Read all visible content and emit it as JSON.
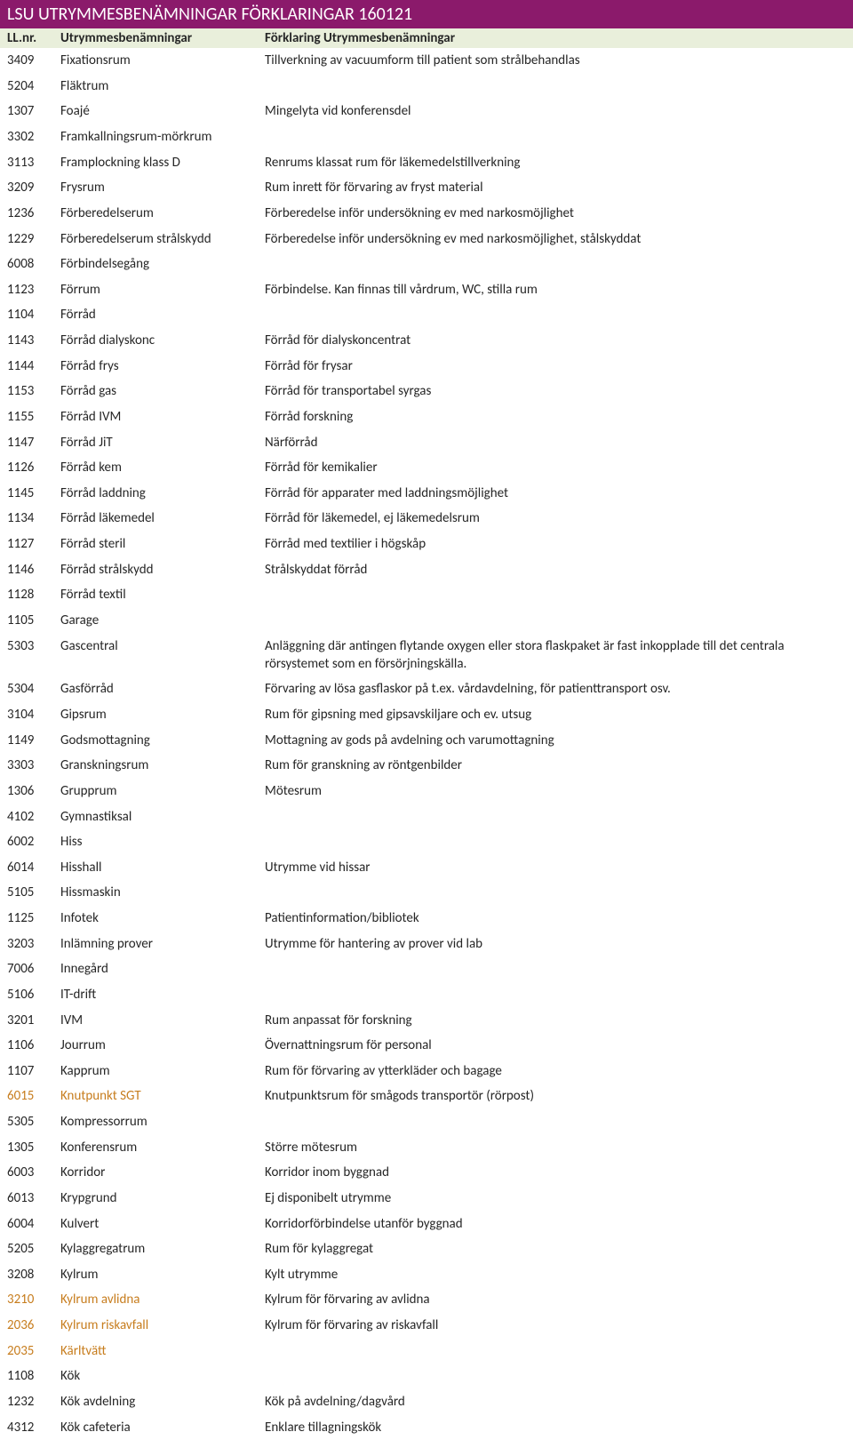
{
  "title": "LSU UTRYMMESBENÄMNINGAR FÖRKLARINGAR 160121",
  "header": {
    "nr": "LL.nr.",
    "name": "Utrymmesbenämningar",
    "desc": "Förklaring Utrymmesbenämningar"
  },
  "colors": {
    "titleBg": "#8b1a6b",
    "titleFg": "#ffffff",
    "headerBg": "#e9efdb",
    "text": "#262626",
    "highlight": "#c77d1e"
  },
  "rows": [
    {
      "nr": "3409",
      "name": "Fixationsrum",
      "desc": "Tillverkning av vacuumform till patient som strålbehandlas"
    },
    {
      "nr": "5204",
      "name": "Fläktrum",
      "desc": ""
    },
    {
      "nr": "1307",
      "name": "Foajé",
      "desc": "Mingelyta vid konferensdel"
    },
    {
      "nr": "3302",
      "name": "Framkallningsrum-mörkrum",
      "desc": ""
    },
    {
      "nr": "3113",
      "name": "Framplockning klass D",
      "desc": "Renrums klassat rum för läkemedelstillverkning"
    },
    {
      "nr": "3209",
      "name": "Frysrum",
      "desc": "Rum inrett för förvaring av fryst material"
    },
    {
      "nr": "1236",
      "name": "Förberedelserum",
      "desc": "Förberedelse inför undersökning ev med narkosmöjlighet"
    },
    {
      "nr": "1229",
      "name": "Förberedelserum strålskydd",
      "desc": "Förberedelse inför undersökning ev med narkosmöjlighet, stålskyddat"
    },
    {
      "nr": "6008",
      "name": "Förbindelsegång",
      "desc": ""
    },
    {
      "nr": "1123",
      "name": "Förrum",
      "desc": "Förbindelse. Kan finnas till vårdrum, WC, stilla rum"
    },
    {
      "nr": "1104",
      "name": "Förråd",
      "desc": ""
    },
    {
      "nr": "1143",
      "name": "Förråd dialyskonc",
      "desc": "Förråd för dialyskoncentrat"
    },
    {
      "nr": "1144",
      "name": "Förråd frys",
      "desc": "Förråd för frysar"
    },
    {
      "nr": "1153",
      "name": "Förråd gas",
      "desc": "Förråd för transportabel syrgas"
    },
    {
      "nr": "1155",
      "name": "Förråd IVM",
      "desc": "Förråd forskning"
    },
    {
      "nr": "1147",
      "name": "Förråd JiT",
      "desc": "Närförråd"
    },
    {
      "nr": "1126",
      "name": "Förråd kem",
      "desc": "Förråd för kemikalier"
    },
    {
      "nr": "1145",
      "name": "Förråd laddning",
      "desc": "Förråd för apparater med laddningsmöjlighet"
    },
    {
      "nr": "1134",
      "name": "Förråd läkemedel",
      "desc": "Förråd för läkemedel, ej läkemedelsrum"
    },
    {
      "nr": "1127",
      "name": "Förråd steril",
      "desc": "Förråd med textilier i högskåp"
    },
    {
      "nr": "1146",
      "name": "Förråd strålskydd",
      "desc": "Strålskyddat förråd"
    },
    {
      "nr": "1128",
      "name": "Förråd textil",
      "desc": ""
    },
    {
      "nr": "1105",
      "name": "Garage",
      "desc": ""
    },
    {
      "nr": "5303",
      "name": "Gascentral",
      "desc": "Anläggning där antingen flytande oxygen eller stora flaskpaket är fast inkopplade till det centrala rörsystemet som en försörjningskälla."
    },
    {
      "nr": "5304",
      "name": "Gasförråd",
      "desc": "Förvaring av lösa gasflaskor på t.ex. vårdavdelning, för patienttransport osv."
    },
    {
      "nr": "3104",
      "name": "Gipsrum",
      "desc": "Rum för gipsning med gipsavskiljare och ev. utsug"
    },
    {
      "nr": "1149",
      "name": "Godsmottagning",
      "desc": "Mottagning av gods på avdelning och varumottagning"
    },
    {
      "nr": "3303",
      "name": "Granskningsrum",
      "desc": "Rum för granskning av röntgenbilder"
    },
    {
      "nr": "1306",
      "name": "Grupprum",
      "desc": "Mötesrum"
    },
    {
      "nr": "4102",
      "name": "Gymnastiksal",
      "desc": ""
    },
    {
      "nr": "6002",
      "name": "Hiss",
      "desc": ""
    },
    {
      "nr": "6014",
      "name": "Hisshall",
      "desc": "Utrymme vid hissar"
    },
    {
      "nr": "5105",
      "name": "Hissmaskin",
      "desc": ""
    },
    {
      "nr": "1125",
      "name": "Infotek",
      "desc": "Patientinformation/bibliotek"
    },
    {
      "nr": "3203",
      "name": "Inlämning prover",
      "desc": "Utrymme för hantering av prover vid lab"
    },
    {
      "nr": "7006",
      "name": "Innegård",
      "desc": ""
    },
    {
      "nr": "5106",
      "name": "IT-drift",
      "desc": ""
    },
    {
      "nr": "3201",
      "name": "IVM",
      "desc": "Rum anpassat för forskning"
    },
    {
      "nr": "1106",
      "name": "Jourrum",
      "desc": "Övernattningsrum för personal"
    },
    {
      "nr": "1107",
      "name": "Kapprum",
      "desc": "Rum för förvaring av ytterkläder och bagage"
    },
    {
      "nr": "6015",
      "name": "Knutpunkt SGT",
      "desc": "Knutpunktsrum för smågods transportör (rörpost)",
      "hl": true
    },
    {
      "nr": "5305",
      "name": "Kompressorrum",
      "desc": ""
    },
    {
      "nr": "1305",
      "name": "Konferensrum",
      "desc": "Större mötesrum"
    },
    {
      "nr": "6003",
      "name": "Korridor",
      "desc": "Korridor inom byggnad"
    },
    {
      "nr": "6013",
      "name": "Krypgrund",
      "desc": "Ej disponibelt utrymme"
    },
    {
      "nr": "6004",
      "name": "Kulvert",
      "desc": "Korridorförbindelse utanför byggnad"
    },
    {
      "nr": "5205",
      "name": "Kylaggregatrum",
      "desc": "Rum för kylaggregat"
    },
    {
      "nr": "3208",
      "name": "Kylrum",
      "desc": "Kylt utrymme"
    },
    {
      "nr": "3210",
      "name": "Kylrum avlidna",
      "desc": "Kylrum för förvaring av avlidna",
      "hl": true
    },
    {
      "nr": "2036",
      "name": "Kylrum riskavfall",
      "desc": "Kylrum för förvaring av riskavfall",
      "hl": true
    },
    {
      "nr": "2035",
      "name": "Kärltvätt",
      "desc": "",
      "hl": true
    },
    {
      "nr": "1108",
      "name": "Kök",
      "desc": ""
    },
    {
      "nr": "1232",
      "name": "Kök avdelning",
      "desc": "Kök på avdelning/dagvård"
    },
    {
      "nr": "4312",
      "name": "Kök cafeteria",
      "desc": "Enklare tillagningskök"
    }
  ]
}
